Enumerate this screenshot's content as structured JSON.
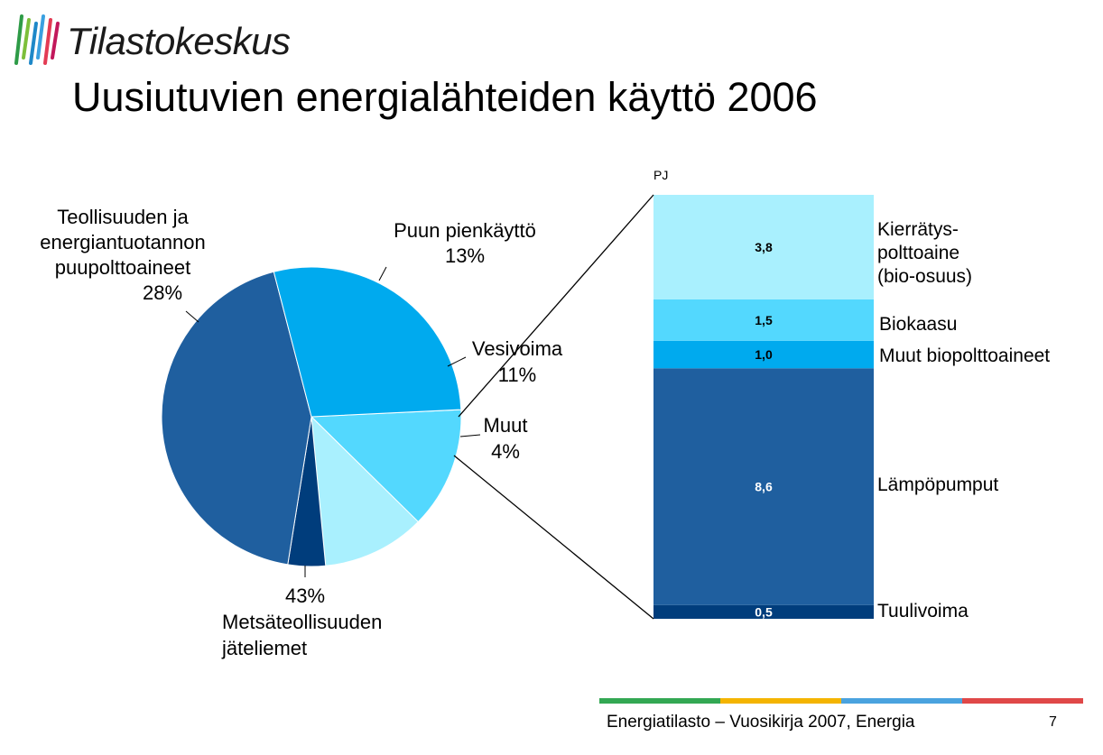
{
  "header": {
    "brand": "Tilastokeskus",
    "title": "Uusiutuvien energialähteiden käyttö 2006"
  },
  "footer": {
    "source": "Energiatilasto – Vuosikirja 2007, Energia",
    "page_number": "7",
    "stripe_colors": [
      "#33a853",
      "#f4b400",
      "#4aa3df",
      "#e04848"
    ]
  },
  "colors": {
    "light_cyan": "#a9f0fe",
    "cyan": "#53d8fe",
    "sky": "#00aaee",
    "mid_blue": "#1f5f9f",
    "navy": "#003d7c"
  },
  "chart_data": [
    {
      "type": "pie",
      "title": "",
      "slices": [
        {
          "label_lines": [
            "Puun pienkäyttö",
            "13%"
          ],
          "value": 13
        },
        {
          "label_lines": [
            "Vesivoima",
            "11%"
          ],
          "value": 11
        },
        {
          "label_lines": [
            "Muut",
            "4%"
          ],
          "value": 4
        },
        {
          "label_lines": [
            "43%",
            "Metsäteollisuuden",
            "jäteliemet"
          ],
          "value": 43
        },
        {
          "label_lines": [
            "Teollisuuden ja",
            "energiantuotannon",
            "puupolttoaineet",
            "28%"
          ],
          "value": 28
        }
      ],
      "legend": "none"
    },
    {
      "type": "bar",
      "stacked": true,
      "unit": "PJ",
      "title": "",
      "segments_bottom_to_top": [
        {
          "label": "Tuulivoima",
          "value": 0.5,
          "value_label": "0,5"
        },
        {
          "label": "Lämpöpumput",
          "value": 8.6,
          "value_label": "8,6"
        },
        {
          "label": "Muut biopolttoaineet",
          "value": 1.0,
          "value_label": "1,0"
        },
        {
          "label": "Biokaasu",
          "value": 1.5,
          "value_label": "1,5"
        },
        {
          "label_lines": [
            "Kierrätys-",
            "polttoaine",
            "(bio-osuus)"
          ],
          "value": 3.8,
          "value_label": "3,8"
        }
      ],
      "legend": "none"
    }
  ]
}
